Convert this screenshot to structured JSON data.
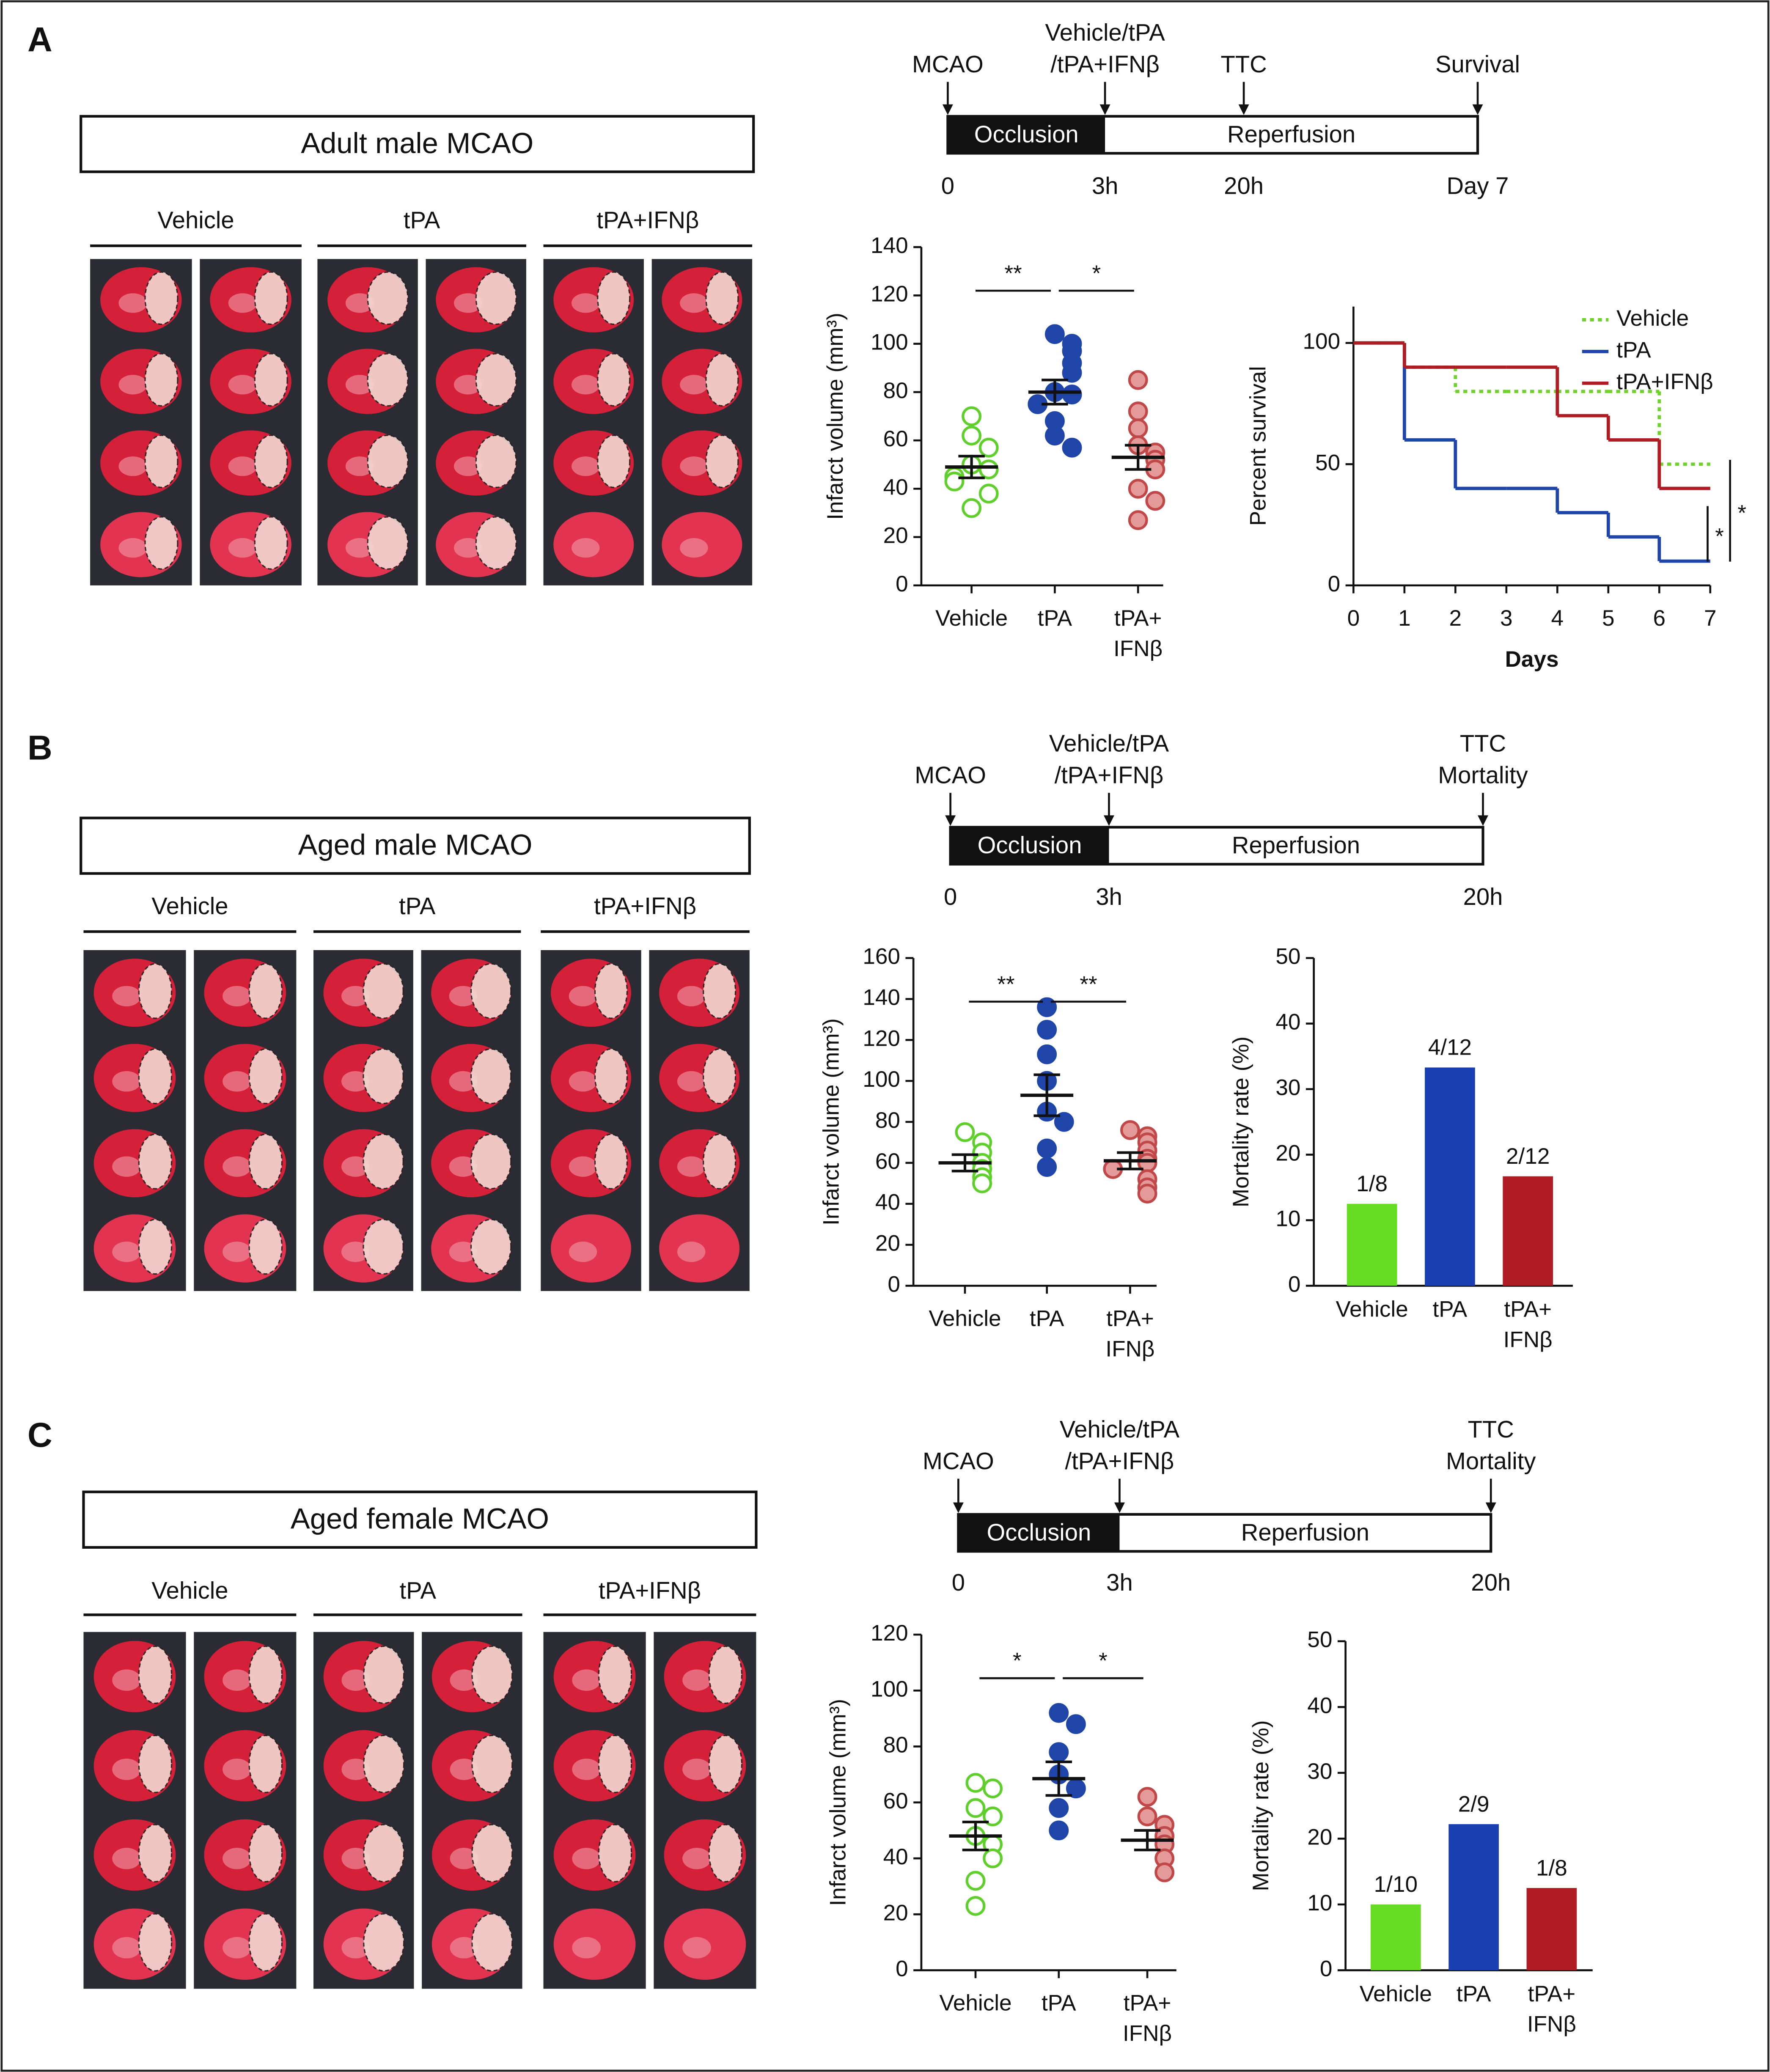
{
  "panels": [
    {
      "label": "A",
      "image_title": "Adult male MCAO",
      "groups": [
        "Vehicle",
        "tPA",
        "tPA+IFNβ"
      ],
      "timeline": {
        "events": [
          [
            "MCAO"
          ],
          [
            "Vehicle/tPA",
            "/tPA+IFNβ"
          ],
          [
            "TTC"
          ],
          [
            "Survival"
          ]
        ],
        "times": [
          "0",
          "3h",
          "20h",
          "Day 7"
        ],
        "phases": [
          "Occlusion",
          "Reperfusion"
        ]
      }
    },
    {
      "label": "B",
      "image_title": "Aged male MCAO",
      "groups": [
        "Vehicle",
        "tPA",
        "tPA+IFNβ"
      ],
      "timeline": {
        "events": [
          [
            "MCAO"
          ],
          [
            "Vehicle/tPA",
            "/tPA+IFNβ"
          ],
          [
            "TTC",
            "Mortality"
          ]
        ],
        "times": [
          "0",
          "3h",
          "20h"
        ],
        "phases": [
          "Occlusion",
          "Reperfusion"
        ]
      }
    },
    {
      "label": "C",
      "image_title": "Aged female MCAO",
      "groups": [
        "Vehicle",
        "tPA",
        "tPA+IFNβ"
      ],
      "timeline": {
        "events": [
          [
            "MCAO"
          ],
          [
            "Vehicle/tPA",
            "/tPA+IFNβ"
          ],
          [
            "TTC",
            "Mortality"
          ]
        ],
        "times": [
          "0",
          "3h",
          "20h"
        ],
        "phases": [
          "Occlusion",
          "Reperfusion"
        ]
      }
    }
  ],
  "chart_data": [
    {
      "type": "dotplot",
      "ylabel": "Infarct volume (mm³)",
      "categories": [
        "Vehicle",
        "tPA",
        "tPA+ IFNβ"
      ],
      "groups": [
        {
          "color": "#5fcf2b",
          "filled": false,
          "values": [
            70,
            62,
            57,
            50,
            48,
            45,
            43,
            38,
            32
          ],
          "mean": 49,
          "sem": 4.5
        },
        {
          "color": "#1f45a8",
          "filled": true,
          "values": [
            104,
            100,
            97,
            92,
            88,
            80,
            79,
            75,
            68,
            62,
            57
          ],
          "mean": 80,
          "sem": 5
        },
        {
          "color": "#c04848",
          "filled": true,
          "values": [
            85,
            72,
            65,
            58,
            55,
            52,
            48,
            40,
            35,
            27
          ],
          "mean": 53,
          "sem": 5
        }
      ],
      "brackets": [
        "**",
        "*"
      ],
      "ylim": [
        0,
        140
      ],
      "yticks": [
        0,
        20,
        40,
        60,
        80,
        100,
        120,
        140
      ]
    },
    {
      "type": "line",
      "step": true,
      "xlabel": "Days",
      "ylabel": "Percent survival",
      "x": [
        0,
        1,
        2,
        3,
        4,
        5,
        6
      ],
      "series": [
        {
          "name": "Vehicle",
          "color": "#6fd22c",
          "style": "dotted",
          "values": [
            100,
            90,
            80,
            80,
            80,
            80,
            50
          ]
        },
        {
          "name": "tPA",
          "color": "#1f45a8",
          "style": "solid",
          "values": [
            100,
            60,
            40,
            40,
            30,
            20,
            10
          ]
        },
        {
          "name": "tPA+IFNβ",
          "color": "#b01c24",
          "style": "solid",
          "values": [
            100,
            90,
            90,
            90,
            70,
            60,
            40
          ]
        }
      ],
      "brackets": [
        "*",
        "*"
      ],
      "xlim": [
        0,
        7
      ],
      "xticks": [
        0,
        1,
        2,
        3,
        4,
        5,
        6,
        7
      ],
      "ylim": [
        0,
        115
      ],
      "yticks": [
        0,
        50,
        100
      ],
      "legend": "top-right"
    },
    {
      "type": "dotplot",
      "ylabel": "Infarct volume (mm³)",
      "categories": [
        "Vehicle",
        "tPA",
        "tPA+ IFNβ"
      ],
      "groups": [
        {
          "color": "#5fcf2b",
          "filled": false,
          "values": [
            75,
            70,
            65,
            60,
            57,
            53,
            50
          ],
          "mean": 60,
          "sem": 4
        },
        {
          "color": "#1f45a8",
          "filled": true,
          "values": [
            136,
            125,
            113,
            100,
            85,
            80,
            67,
            58
          ],
          "mean": 93,
          "sem": 10
        },
        {
          "color": "#c04848",
          "filled": true,
          "values": [
            76,
            73,
            70,
            66,
            62,
            60,
            57,
            52,
            48,
            45
          ],
          "mean": 61,
          "sem": 4
        }
      ],
      "brackets": [
        "**",
        "**"
      ],
      "ylim": [
        0,
        160
      ],
      "yticks": [
        0,
        20,
        40,
        60,
        80,
        100,
        120,
        140,
        160
      ]
    },
    {
      "type": "bar",
      "ylabel": "Mortality rate (%)",
      "categories": [
        "Vehicle",
        "tPA",
        "tPA+ IFNβ"
      ],
      "values": [
        12.5,
        33.3,
        16.7
      ],
      "value_labels": [
        "1/8",
        "4/12",
        "2/12"
      ],
      "colors": [
        "#66dd22",
        "#1a3fb0",
        "#b01c24"
      ],
      "ylim": [
        0,
        50
      ],
      "yticks": [
        0,
        10,
        20,
        30,
        40,
        50
      ]
    },
    {
      "type": "dotplot",
      "ylabel": "Infarct volume (mm³)",
      "categories": [
        "Vehicle",
        "tPA",
        "tPA+ IFNβ"
      ],
      "groups": [
        {
          "color": "#5fcf2b",
          "filled": false,
          "values": [
            67,
            65,
            58,
            55,
            48,
            45,
            40,
            32,
            23
          ],
          "mean": 48,
          "sem": 5
        },
        {
          "color": "#1f45a8",
          "filled": true,
          "values": [
            92,
            88,
            78,
            70,
            65,
            58,
            50
          ],
          "mean": 68.5,
          "sem": 6
        },
        {
          "color": "#c04848",
          "filled": true,
          "values": [
            62,
            55,
            52,
            48,
            45,
            40,
            35
          ],
          "mean": 46.5,
          "sem": 3.5
        }
      ],
      "brackets": [
        "*",
        "*"
      ],
      "ylim": [
        0,
        120
      ],
      "yticks": [
        0,
        20,
        40,
        60,
        80,
        100,
        120
      ]
    },
    {
      "type": "bar",
      "ylabel": "Mortality rate (%)",
      "categories": [
        "Vehicle",
        "tPA",
        "tPA+ IFNβ"
      ],
      "values": [
        10,
        22.2,
        12.5
      ],
      "value_labels": [
        "1/10",
        "2/9",
        "1/8"
      ],
      "colors": [
        "#66dd22",
        "#1a3fb0",
        "#b01c24"
      ],
      "ylim": [
        0,
        50
      ],
      "yticks": [
        0,
        10,
        20,
        30,
        40,
        50
      ]
    }
  ]
}
